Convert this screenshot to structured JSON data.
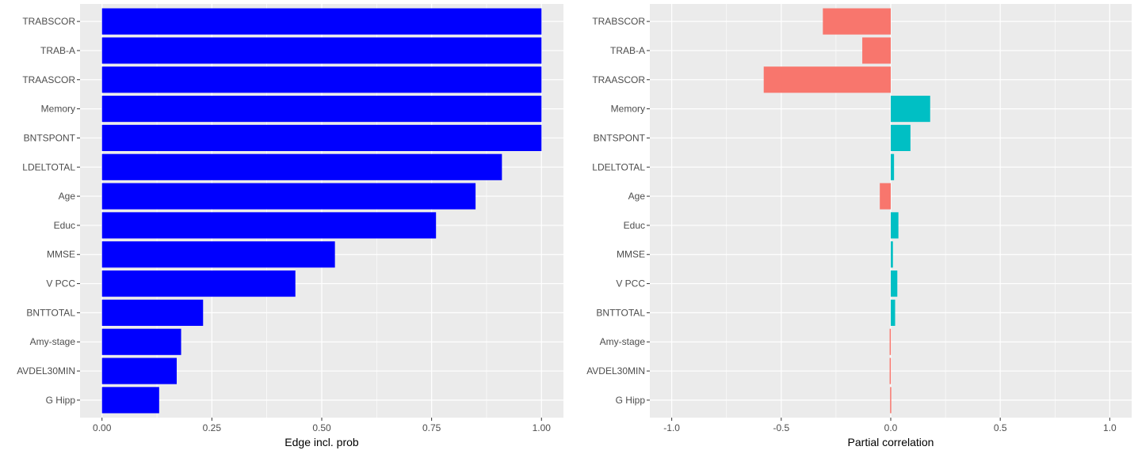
{
  "colors": {
    "panel_bg": "#EBEBEB",
    "grid_major": "#FFFFFF",
    "prob_bar": "#0000FF",
    "negative": "#F8766D",
    "positive": "#00BFC4",
    "tick_text": "#4D4D4D"
  },
  "chart_data": [
    {
      "type": "bar",
      "orientation": "horizontal",
      "xlabel": "Edge incl. prob",
      "ylabel": "",
      "xlim": [
        0,
        1
      ],
      "xticks": [
        0.0,
        0.25,
        0.5,
        0.75,
        1.0
      ],
      "xtick_labels": [
        "0.00",
        "0.25",
        "0.50",
        "0.75",
        "1.00"
      ],
      "grid": true,
      "categories": [
        "TRABSCOR",
        "TRAB-A",
        "TRAASCOR",
        "Memory",
        "BNTSPONT",
        "LDELTOTAL",
        "Age",
        "Educ",
        "MMSE",
        "V PCC",
        "BNTTOTAL",
        "Amy-stage",
        "AVDEL30MIN",
        "G Hipp"
      ],
      "values": [
        1.0,
        1.0,
        1.0,
        1.0,
        1.0,
        0.91,
        0.85,
        0.76,
        0.53,
        0.44,
        0.23,
        0.18,
        0.17,
        0.13
      ]
    },
    {
      "type": "bar",
      "orientation": "horizontal",
      "xlabel": "Partial correlation",
      "ylabel": "",
      "xlim": [
        -1,
        1
      ],
      "xticks": [
        -1.0,
        -0.5,
        0.0,
        0.5,
        1.0
      ],
      "xtick_labels": [
        "-1.0",
        "-0.5",
        "0.0",
        "0.5",
        "1.0"
      ],
      "grid": true,
      "categories": [
        "TRABSCOR",
        "TRAB-A",
        "TRAASCOR",
        "Memory",
        "BNTSPONT",
        "LDELTOTAL",
        "Age",
        "Educ",
        "MMSE",
        "V PCC",
        "BNTTOTAL",
        "Amy-stage",
        "AVDEL30MIN",
        "G Hipp"
      ],
      "values": [
        -0.31,
        -0.13,
        -0.58,
        0.18,
        0.09,
        0.015,
        -0.05,
        0.035,
        0.01,
        0.03,
        0.02,
        -0.005,
        -0.005,
        -0.003
      ]
    }
  ]
}
